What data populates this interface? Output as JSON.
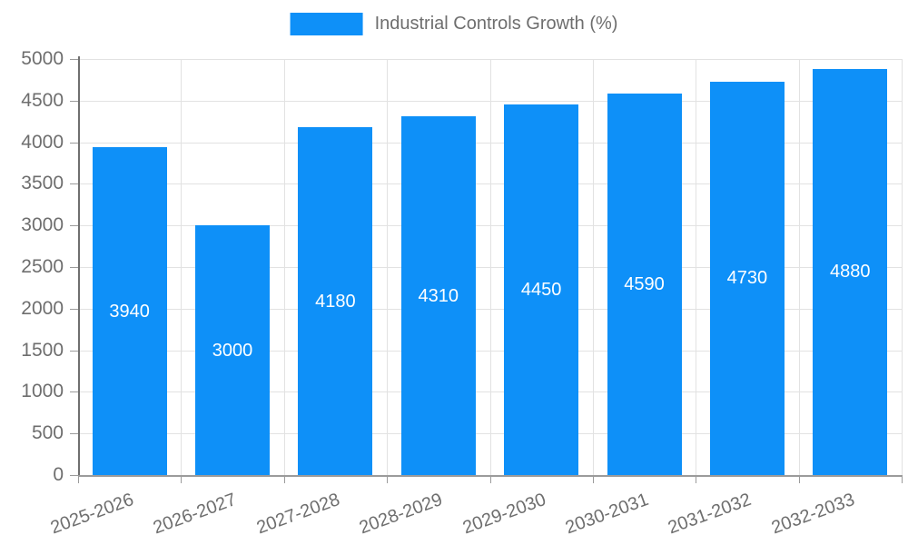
{
  "legend": {
    "label": "Industrial Controls Growth (%)"
  },
  "colors": {
    "bar": "#0e90f8",
    "grid": "#e2e2e2",
    "axis_x": "#9b9b9b",
    "axis_y": "#6f6f6f",
    "tick_label": "#6e6e6e",
    "value_label": "#ffffff"
  },
  "chart_data": {
    "type": "bar",
    "title": "Industrial Controls Growth (%)",
    "categories": [
      "2025-2026",
      "2026-2027",
      "2027-2028",
      "2028-2029",
      "2029-2030",
      "2030-2031",
      "2031-2032",
      "2032-2033"
    ],
    "values": [
      3940,
      3000,
      4180,
      4310,
      4450,
      4590,
      4730,
      4880
    ],
    "yticks": [
      0,
      500,
      1000,
      1500,
      2000,
      2500,
      3000,
      3500,
      4000,
      4500,
      5000
    ],
    "ylim": [
      0,
      5000
    ],
    "xlabel": "",
    "ylabel": "",
    "grid": true,
    "legend_position": "top-center",
    "bar_labels_inside": true,
    "x_label_rotation_deg": -20
  }
}
